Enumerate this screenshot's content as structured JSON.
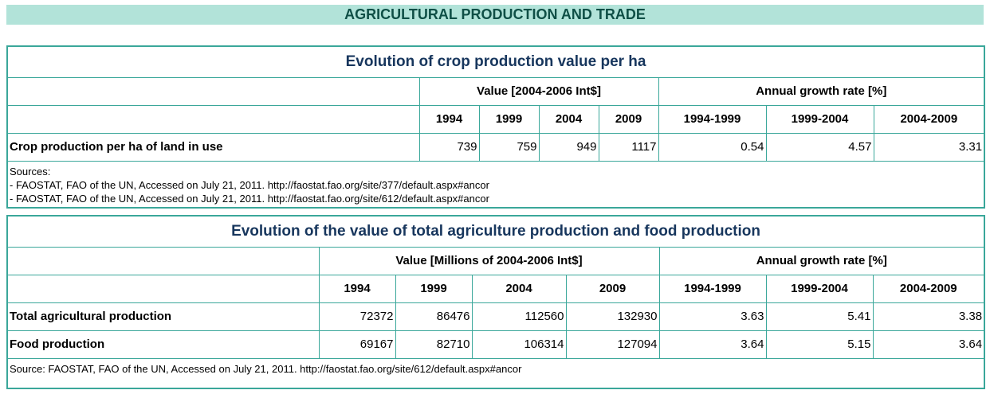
{
  "page": {
    "title": "AGRICULTURAL PRODUCTION AND TRADE"
  },
  "crop_table": {
    "title": "Evolution of crop production value per ha",
    "value_group_header": "Value [2004-2006 Int$]",
    "growth_group_header": "Annual growth rate [%]",
    "years": [
      "1994",
      "1999",
      "2004",
      "2009"
    ],
    "periods": [
      "1994-1999",
      "1999-2004",
      "2004-2009"
    ],
    "rows": [
      {
        "label": "Crop production per ha of land in use",
        "values": [
          "739",
          "759",
          "949",
          "1117"
        ],
        "growth": [
          "0.54",
          "4.57",
          "3.31"
        ]
      }
    ],
    "sources": [
      "Sources:",
      "- FAOSTAT, FAO of the UN, Accessed on July 21, 2011. http://faostat.fao.org/site/377/default.aspx#ancor",
      "- FAOSTAT, FAO of the UN, Accessed on July 21, 2011. http://faostat.fao.org/site/612/default.aspx#ancor"
    ]
  },
  "agri_table": {
    "title": "Evolution of the value of total agriculture production and food production",
    "value_group_header": "Value [Millions of 2004-2006 Int$]",
    "growth_group_header": "Annual growth rate [%]",
    "years": [
      "1994",
      "1999",
      "2004",
      "2009"
    ],
    "periods": [
      "1994-1999",
      "1999-2004",
      "2004-2009"
    ],
    "rows": [
      {
        "label": "Total agricultural production",
        "values": [
          "72372",
          "86476",
          "112560",
          "132930"
        ],
        "growth": [
          "3.63",
          "5.41",
          "3.38"
        ]
      },
      {
        "label": "Food production",
        "values": [
          "69167",
          "82710",
          "106314",
          "127094"
        ],
        "growth": [
          "3.64",
          "5.15",
          "3.64"
        ]
      }
    ],
    "source": "Source: FAOSTAT, FAO of the UN, Accessed on July 21, 2011. http://faostat.fao.org/site/612/default.aspx#ancor"
  },
  "colors": {
    "banner_bg": "#b2e3d9",
    "banner_text": "#0f4f46",
    "border": "#3aa79a",
    "title_text": "#17365d"
  }
}
